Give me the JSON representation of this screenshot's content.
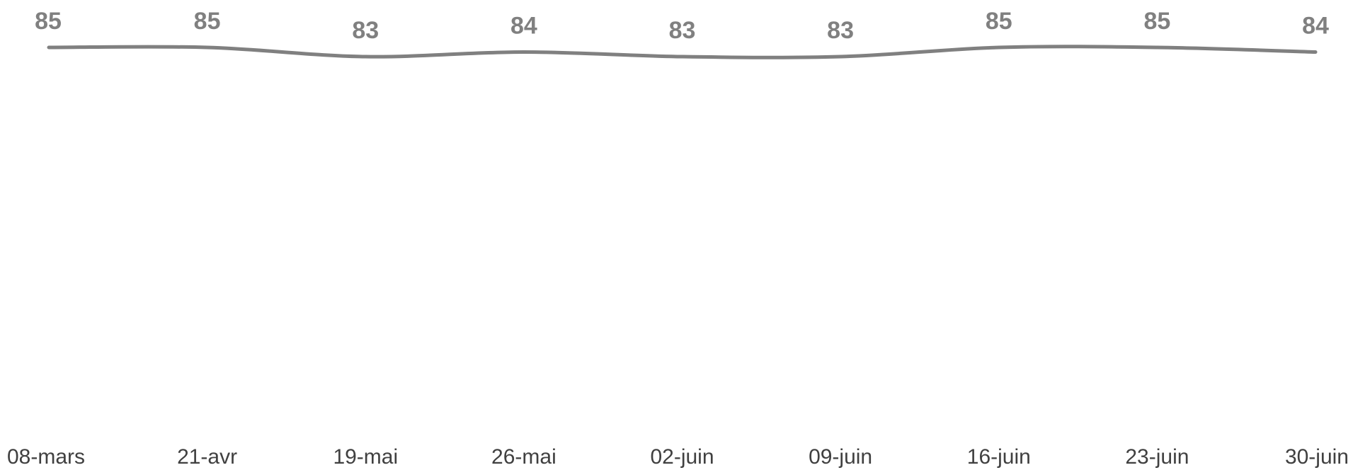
{
  "chart_data": {
    "type": "line",
    "categories": [
      "08-mars",
      "21-avr",
      "19-mai",
      "26-mai",
      "02-juin",
      "09-juin",
      "16-juin",
      "23-juin",
      "30-juin"
    ],
    "values": [
      85,
      85,
      83,
      84,
      83,
      83,
      85,
      85,
      84
    ],
    "title": "",
    "xlabel": "",
    "ylabel": "",
    "ylim": [
      0,
      87
    ],
    "grid": false,
    "legend": "none",
    "smooth": true,
    "colors": {
      "line": "#808080",
      "data_label": "#808080",
      "tick_label": "#404040",
      "background": "#ffffff"
    }
  }
}
